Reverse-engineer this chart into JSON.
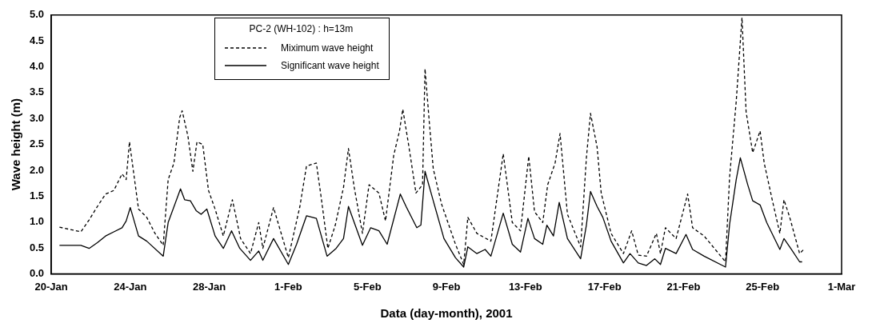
{
  "chart_data": {
    "type": "line",
    "xlabel": "Data (day-month), 2001",
    "ylabel": "Wave height (m)",
    "legend_title": "PC-2 (WH-102) : h=13m",
    "legend": "top left",
    "grid": false,
    "marker": "none",
    "xlim": [
      "2001-01-20",
      "2001-03-01"
    ],
    "xticks": [
      {
        "value": "2001-01-20",
        "label": "20-Jan"
      },
      {
        "value": "2001-01-24",
        "label": "24-Jan"
      },
      {
        "value": "2001-01-28",
        "label": "28-Jan"
      },
      {
        "value": "2001-02-01",
        "label": "1-Feb"
      },
      {
        "value": "2001-02-05",
        "label": "5-Feb"
      },
      {
        "value": "2001-02-09",
        "label": "9-Feb"
      },
      {
        "value": "2001-02-13",
        "label": "13-Feb"
      },
      {
        "value": "2001-02-17",
        "label": "17-Feb"
      },
      {
        "value": "2001-02-21",
        "label": "21-Feb"
      },
      {
        "value": "2001-02-25",
        "label": "25-Feb"
      },
      {
        "value": "2001-03-01",
        "label": "1-Mar"
      }
    ],
    "ylim": [
      0,
      5
    ],
    "yticks": [
      {
        "value": 0,
        "label": "0.0"
      },
      {
        "value": 0.5,
        "label": "0.5"
      },
      {
        "value": 1,
        "label": "1.0"
      },
      {
        "value": 1.5,
        "label": "1.5"
      },
      {
        "value": 2,
        "label": "2.0"
      },
      {
        "value": 2.5,
        "label": "2.5"
      },
      {
        "value": 3,
        "label": "3.0"
      },
      {
        "value": 3.5,
        "label": "3.5"
      },
      {
        "value": 4,
        "label": "4.0"
      },
      {
        "value": 4.5,
        "label": "4.5"
      },
      {
        "value": 5,
        "label": "5.0"
      }
    ],
    "series": [
      {
        "name": "Miximum wave height",
        "color": "#000000",
        "line_style": "dashed",
        "x": [
          "2001-01-20T10:00",
          "2001-01-21T12:00",
          "2001-01-21T22:00",
          "2001-01-22T08:00",
          "2001-01-22T18:00",
          "2001-01-23T04:00",
          "2001-01-23T14:00",
          "2001-01-23T19:00",
          "2001-01-23T23:00",
          "2001-01-24T10:00",
          "2001-01-24T20:00",
          "2001-01-25T06:00",
          "2001-01-25T16:00",
          "2001-01-25T22:00",
          "2001-01-26T05:00",
          "2001-01-26T12:00",
          "2001-01-26T15:00",
          "2001-01-26T22:00",
          "2001-01-27T04:00",
          "2001-01-27T09:00",
          "2001-01-27T16:00",
          "2001-01-27T23:00",
          "2001-01-28T07:00",
          "2001-01-28T17:00",
          "2001-01-29T04:00",
          "2001-01-29T14:00",
          "2001-01-30T02:00",
          "2001-01-30T12:00",
          "2001-01-30T17:00",
          "2001-01-31T06:00",
          "2001-02-01T00:00",
          "2001-02-01T14:00",
          "2001-02-01T22:00",
          "2001-02-02T10:00",
          "2001-02-02T16:00",
          "2001-02-03T00:00",
          "2001-02-03T09:00",
          "2001-02-03T19:00",
          "2001-02-04T01:00",
          "2001-02-04T08:00",
          "2001-02-04T18:00",
          "2001-02-05T02:00",
          "2001-02-05T14:00",
          "2001-02-05T22:00",
          "2001-02-06T08:00",
          "2001-02-06T15:00",
          "2001-02-06T19:00",
          "2001-02-07T02:00",
          "2001-02-07T11:00",
          "2001-02-07T19:00",
          "2001-02-07T22:00",
          "2001-02-08T03:00",
          "2001-02-08T08:00",
          "2001-02-08T18:00",
          "2001-02-09T11:00",
          "2001-02-09T21:00",
          "2001-02-10T02:00",
          "2001-02-10T13:00",
          "2001-02-11T06:00",
          "2001-02-11T21:00",
          "2001-02-12T08:00",
          "2001-02-12T18:00",
          "2001-02-13T04:00",
          "2001-02-13T11:00",
          "2001-02-13T21:00",
          "2001-02-14T03:00",
          "2001-02-14T12:00",
          "2001-02-14T18:00",
          "2001-02-15T03:00",
          "2001-02-15T19:00",
          "2001-02-16T02:00",
          "2001-02-16T07:00",
          "2001-02-16T15:00",
          "2001-02-16T20:00",
          "2001-02-17T08:00",
          "2001-02-17T23:00",
          "2001-02-18T09:00",
          "2001-02-18T17:00",
          "2001-02-19T03:00",
          "2001-02-19T15:00",
          "2001-02-19T20:00",
          "2001-02-20T02:00",
          "2001-02-20T15:00",
          "2001-02-21T05:00",
          "2001-02-21T11:00",
          "2001-02-22T01:00",
          "2001-02-23T03:00",
          "2001-02-23T08:00",
          "2001-02-23T16:00",
          "2001-02-23T23:00",
          "2001-02-24T04:00",
          "2001-02-24T12:00",
          "2001-02-24T21:00",
          "2001-02-25T02:00",
          "2001-02-25T12:00",
          "2001-02-25T21:00",
          "2001-02-26T02:00",
          "2001-02-26T09:00",
          "2001-02-26T21:00",
          "2001-02-27T02:00"
        ],
        "values": [
          0.9,
          0.81,
          1.04,
          1.3,
          1.54,
          1.61,
          1.93,
          1.82,
          2.55,
          1.25,
          1.09,
          0.78,
          0.55,
          1.82,
          2.14,
          3.02,
          3.15,
          2.66,
          1.98,
          2.55,
          2.5,
          1.61,
          1.25,
          0.73,
          1.43,
          0.68,
          0.39,
          0.99,
          0.49,
          1.28,
          0.31,
          1.3,
          2.08,
          2.14,
          1.46,
          0.49,
          0.94,
          1.67,
          2.42,
          1.67,
          0.78,
          1.72,
          1.56,
          1.02,
          2.29,
          2.76,
          3.18,
          2.5,
          1.56,
          1.72,
          3.96,
          2.97,
          2.03,
          1.35,
          0.57,
          0.18,
          1.09,
          0.78,
          0.63,
          2.32,
          0.99,
          0.83,
          2.27,
          1.2,
          0.99,
          1.72,
          2.14,
          2.71,
          1.15,
          0.52,
          2.24,
          3.1,
          2.45,
          1.56,
          0.78,
          0.39,
          0.83,
          0.36,
          0.34,
          0.78,
          0.39,
          0.89,
          0.68,
          1.54,
          0.89,
          0.73,
          0.23,
          1.88,
          3.33,
          4.95,
          3.13,
          2.34,
          2.76,
          2.14,
          1.41,
          0.78,
          1.43,
          1.09,
          0.39,
          0.47
        ]
      },
      {
        "name": "Significant wave height",
        "color": "#000000",
        "line_style": "solid",
        "x": [
          "2001-01-20T10:00",
          "2001-01-21T12:00",
          "2001-01-21T22:00",
          "2001-01-22T08:00",
          "2001-01-22T18:00",
          "2001-01-23T04:00",
          "2001-01-23T14:00",
          "2001-01-23T19:00",
          "2001-01-24T00:00",
          "2001-01-24T10:00",
          "2001-01-24T20:00",
          "2001-01-25T16:00",
          "2001-01-25T22:00",
          "2001-01-26T13:00",
          "2001-01-26T18:00",
          "2001-01-27T01:00",
          "2001-01-27T08:00",
          "2001-01-27T14:00",
          "2001-01-27T21:00",
          "2001-01-28T07:00",
          "2001-01-28T17:00",
          "2001-01-29T03:00",
          "2001-01-29T13:00",
          "2001-01-30T02:00",
          "2001-01-30T12:00",
          "2001-01-30T17:00",
          "2001-01-31T06:00",
          "2001-02-01T00:00",
          "2001-02-01T10:00",
          "2001-02-01T22:00",
          "2001-02-02T10:00",
          "2001-02-02T23:00",
          "2001-02-03T10:00",
          "2001-02-03T19:00",
          "2001-02-04T01:00",
          "2001-02-04T18:00",
          "2001-02-05T04:00",
          "2001-02-05T14:00",
          "2001-02-06T00:00",
          "2001-02-06T16:00",
          "2001-02-06T23:00",
          "2001-02-07T12:00",
          "2001-02-07T17:00",
          "2001-02-07T22:00",
          "2001-02-08T08:00",
          "2001-02-08T21:00",
          "2001-02-09T11:00",
          "2001-02-09T21:00",
          "2001-02-10T02:00",
          "2001-02-10T13:00",
          "2001-02-10T23:00",
          "2001-02-11T06:00",
          "2001-02-11T21:00",
          "2001-02-12T08:00",
          "2001-02-12T18:00",
          "2001-02-13T03:00",
          "2001-02-13T11:00",
          "2001-02-13T21:00",
          "2001-02-14T02:00",
          "2001-02-14T10:00",
          "2001-02-14T17:00",
          "2001-02-15T03:00",
          "2001-02-15T19:00",
          "2001-02-16T02:00",
          "2001-02-16T07:00",
          "2001-02-16T15:00",
          "2001-02-16T22:00",
          "2001-02-17T08:00",
          "2001-02-17T23:00",
          "2001-02-18T07:00",
          "2001-02-18T17:00",
          "2001-02-19T03:00",
          "2001-02-19T13:00",
          "2001-02-19T20:00",
          "2001-02-20T02:00",
          "2001-02-20T15:00",
          "2001-02-21T03:00",
          "2001-02-21T11:00",
          "2001-02-22T01:00",
          "2001-02-23T03:00",
          "2001-02-23T08:00",
          "2001-02-23T16:00",
          "2001-02-23T21:00",
          "2001-02-24T06:00",
          "2001-02-24T12:00",
          "2001-02-24T21:00",
          "2001-02-25T05:00",
          "2001-02-25T21:00",
          "2001-02-26T02:00",
          "2001-02-26T11:00",
          "2001-02-26T21:00",
          "2001-02-27T00:00"
        ],
        "values": [
          0.55,
          0.55,
          0.49,
          0.6,
          0.73,
          0.81,
          0.89,
          1.02,
          1.28,
          0.73,
          0.63,
          0.34,
          0.99,
          1.64,
          1.43,
          1.41,
          1.22,
          1.15,
          1.25,
          0.73,
          0.49,
          0.83,
          0.49,
          0.26,
          0.44,
          0.26,
          0.68,
          0.18,
          0.57,
          1.12,
          1.07,
          0.34,
          0.49,
          0.68,
          1.3,
          0.55,
          0.89,
          0.83,
          0.57,
          1.54,
          1.3,
          0.89,
          0.94,
          1.98,
          1.41,
          0.68,
          0.31,
          0.13,
          0.52,
          0.39,
          0.47,
          0.34,
          1.17,
          0.57,
          0.42,
          1.07,
          0.68,
          0.57,
          0.94,
          0.73,
          1.38,
          0.68,
          0.29,
          0.94,
          1.59,
          1.3,
          1.09,
          0.63,
          0.21,
          0.39,
          0.21,
          0.16,
          0.29,
          0.18,
          0.49,
          0.39,
          0.76,
          0.47,
          0.34,
          0.13,
          0.96,
          1.82,
          2.24,
          1.72,
          1.41,
          1.33,
          0.99,
          0.47,
          0.68,
          0.47,
          0.23,
          0.23
        ]
      }
    ]
  }
}
